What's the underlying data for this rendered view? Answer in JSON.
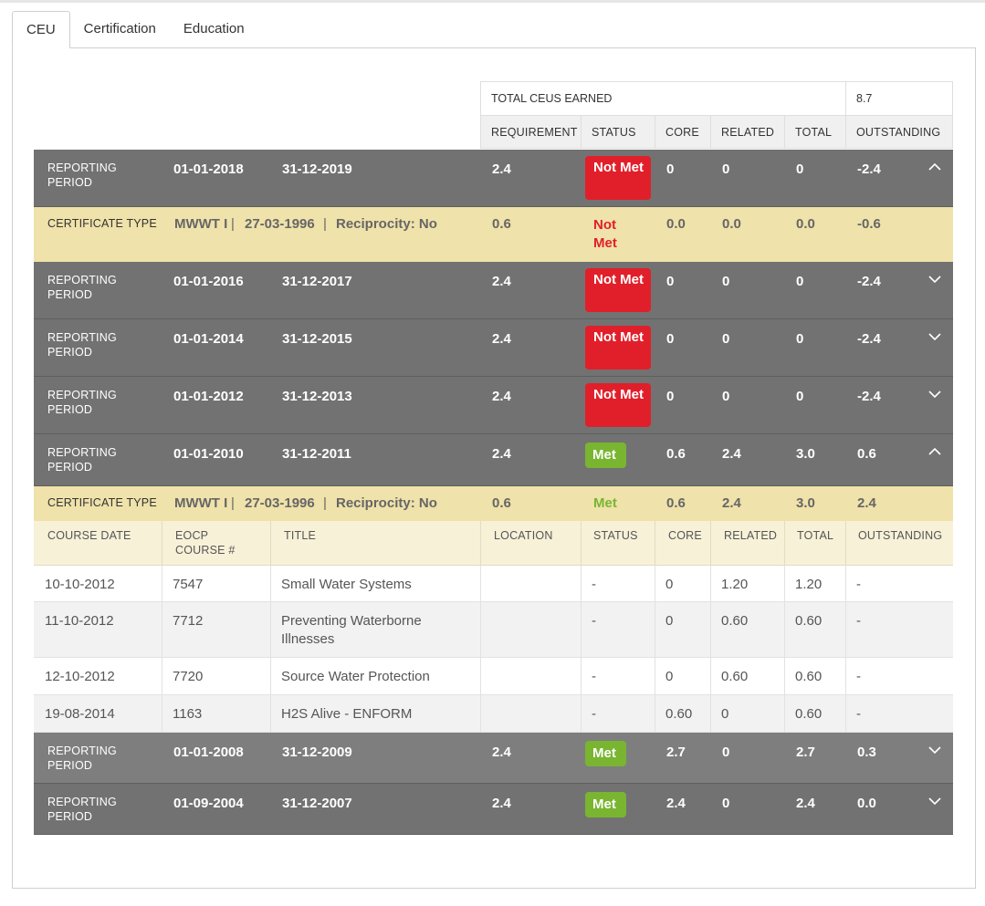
{
  "tabs": [
    {
      "label": "CEU",
      "active": true
    },
    {
      "label": "Certification",
      "active": false
    },
    {
      "label": "Education",
      "active": false
    }
  ],
  "summary": {
    "total_label": "TOTAL CEUS EARNED",
    "total_value": "8.7",
    "columns": [
      "REQUIREMENT",
      "STATUS",
      "CORE",
      "RELATED",
      "TOTAL",
      "OUTSTANDING"
    ]
  },
  "period_label": "REPORTING PERIOD",
  "cert_label": "CERTIFICATE TYPE",
  "periods": [
    {
      "start": "01-01-2018",
      "end": "31-12-2019",
      "requirement": "2.4",
      "status": "Not Met",
      "core": "0",
      "related": "0",
      "total": "0",
      "outstanding": "-2.4",
      "expanded": true,
      "certificate": {
        "type": "MWWT I",
        "date": "27-03-1996",
        "reciprocity": "Reciprocity: No",
        "requirement": "0.6",
        "status": "Not Met",
        "core": "0.0",
        "related": "0.0",
        "total": "0.0",
        "outstanding": "-0.6"
      }
    },
    {
      "start": "01-01-2016",
      "end": "31-12-2017",
      "requirement": "2.4",
      "status": "Not Met",
      "core": "0",
      "related": "0",
      "total": "0",
      "outstanding": "-2.4",
      "expanded": false
    },
    {
      "start": "01-01-2014",
      "end": "31-12-2015",
      "requirement": "2.4",
      "status": "Not Met",
      "core": "0",
      "related": "0",
      "total": "0",
      "outstanding": "-2.4",
      "expanded": false
    },
    {
      "start": "01-01-2012",
      "end": "31-12-2013",
      "requirement": "2.4",
      "status": "Not Met",
      "core": "0",
      "related": "0",
      "total": "0",
      "outstanding": "-2.4",
      "expanded": false
    },
    {
      "start": "01-01-2010",
      "end": "31-12-2011",
      "requirement": "2.4",
      "status": "Met",
      "core": "0.6",
      "related": "2.4",
      "total": "3.0",
      "outstanding": "0.6",
      "expanded": true,
      "certificate": {
        "type": "MWWT I",
        "date": "27-03-1996",
        "reciprocity": "Reciprocity: No",
        "requirement": "0.6",
        "status": "Met",
        "core": "0.6",
        "related": "2.4",
        "total": "3.0",
        "outstanding": "2.4"
      }
    },
    {
      "start": "01-01-2008",
      "end": "31-12-2009",
      "requirement": "2.4",
      "status": "Met",
      "core": "2.7",
      "related": "0",
      "total": "2.7",
      "outstanding": "0.3",
      "expanded": false
    },
    {
      "start": "01-09-2004",
      "end": "31-12-2007",
      "requirement": "2.4",
      "status": "Met",
      "core": "2.4",
      "related": "0",
      "total": "2.4",
      "outstanding": "0.0",
      "expanded": false
    }
  ],
  "courses": {
    "headers": [
      "COURSE DATE",
      "EOCP COURSE #",
      "TITLE",
      "LOCATION",
      "STATUS",
      "CORE",
      "RELATED",
      "TOTAL",
      "OUTSTANDING"
    ],
    "rows": [
      {
        "date": "10-10-2012",
        "course": "7547",
        "title": "Small Water Systems",
        "location": "",
        "status": "-",
        "core": "0",
        "related": "1.20",
        "total": "1.20",
        "outstanding": "-"
      },
      {
        "date": "11-10-2012",
        "course": "7712",
        "title": "Preventing Waterborne Illnesses",
        "location": "",
        "status": "-",
        "core": "0",
        "related": "0.60",
        "total": "0.60",
        "outstanding": "-"
      },
      {
        "date": "12-10-2012",
        "course": "7720",
        "title": "Source Water Protection",
        "location": "",
        "status": "-",
        "core": "0",
        "related": "0.60",
        "total": "0.60",
        "outstanding": "-"
      },
      {
        "date": "19-08-2014",
        "course": "1163",
        "title": "H2S Alive - ENFORM",
        "location": "",
        "status": "-",
        "core": "0.60",
        "related": "0",
        "total": "0.60",
        "outstanding": "-"
      }
    ]
  }
}
